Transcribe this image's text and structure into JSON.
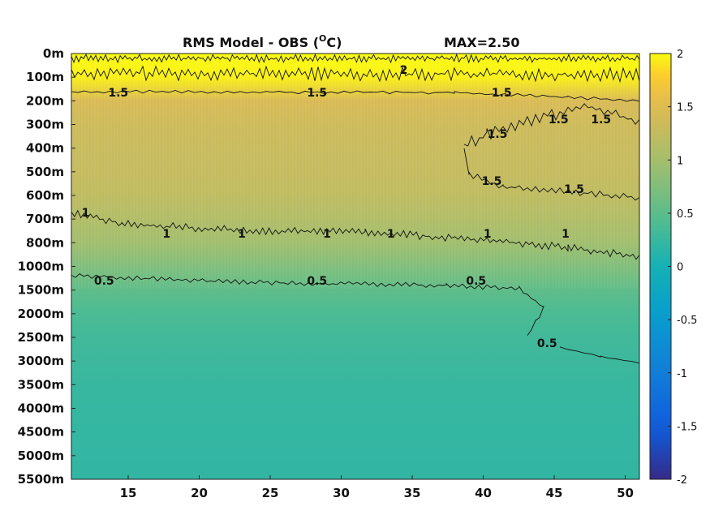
{
  "chart_data": {
    "type": "heatmap",
    "title": "RMS Model - OBS (",
    "title_sup": "O",
    "title_tail": "C)",
    "max_label": "MAX=2.50",
    "xlabel": "",
    "ylabel": "",
    "xlim": [
      11,
      51
    ],
    "x_ticks": [
      15,
      20,
      25,
      30,
      35,
      40,
      45,
      50
    ],
    "y_ticks": [
      "0m",
      "100m",
      "200m",
      "300m",
      "400m",
      "500m",
      "600m",
      "700m",
      "800m",
      "1000m",
      "1500m",
      "2000m",
      "2500m",
      "3000m",
      "3500m",
      "4000m",
      "4500m",
      "5000m",
      "5500m"
    ],
    "colorbar": {
      "colormap": "parula",
      "clim": [
        -2,
        2
      ],
      "ticks": [
        "2",
        "1.5",
        "1",
        "0.5",
        "0",
        "-0.5",
        "-1",
        "-1.5",
        "-2"
      ]
    },
    "depth_profile": [
      {
        "depth": "0m",
        "value": 2.0
      },
      {
        "depth": "100m",
        "value": 1.95
      },
      {
        "depth": "200m",
        "value": 1.45
      },
      {
        "depth": "300m",
        "value": 1.35
      },
      {
        "depth": "400m",
        "value": 1.3
      },
      {
        "depth": "500m",
        "value": 1.28
      },
      {
        "depth": "600m",
        "value": 1.22
      },
      {
        "depth": "700m",
        "value": 1.1
      },
      {
        "depth": "800m",
        "value": 0.97
      },
      {
        "depth": "1000m",
        "value": 0.75
      },
      {
        "depth": "1500m",
        "value": 0.52
      },
      {
        "depth": "2000m",
        "value": 0.38
      },
      {
        "depth": "2500m",
        "value": 0.32
      },
      {
        "depth": "3000m",
        "value": 0.28
      },
      {
        "depth": "3500m",
        "value": 0.25
      },
      {
        "depth": "4000m",
        "value": 0.23
      },
      {
        "depth": "4500m",
        "value": 0.22
      },
      {
        "depth": "5000m",
        "value": 0.21
      },
      {
        "depth": "5500m",
        "value": 0.2
      }
    ],
    "contour_levels": [
      "2",
      "1.5",
      "1",
      "0.5"
    ],
    "contour_labels": [
      {
        "text": "1.5",
        "x": 14.3,
        "depth": "200m"
      },
      {
        "text": "1.5",
        "x": 28.3,
        "depth": "200m"
      },
      {
        "text": "1.5",
        "x": 41.3,
        "depth": "200m"
      },
      {
        "text": "1.5",
        "x": 45.3,
        "depth": "300m"
      },
      {
        "text": "1.5",
        "x": 48.3,
        "depth": "300m"
      },
      {
        "text": "1.5",
        "x": 41.0,
        "depth": "400m"
      },
      {
        "text": "1.5",
        "x": 40.6,
        "depth": "500m"
      },
      {
        "text": "1.5",
        "x": 46.4,
        "depth": "600m"
      },
      {
        "text": "2",
        "x": 34.4,
        "depth": "100m"
      },
      {
        "text": "1",
        "x": 12.0,
        "depth": "700m"
      },
      {
        "text": "1",
        "x": 17.7,
        "depth": "800m"
      },
      {
        "text": "1",
        "x": 23.0,
        "depth": "800m"
      },
      {
        "text": "1",
        "x": 29.0,
        "depth": "800m"
      },
      {
        "text": "1",
        "x": 33.5,
        "depth": "800m"
      },
      {
        "text": "1",
        "x": 40.3,
        "depth": "800m"
      },
      {
        "text": "1",
        "x": 45.8,
        "depth": "800m"
      },
      {
        "text": "0.5",
        "x": 13.3,
        "depth": "1500m"
      },
      {
        "text": "0.5",
        "x": 28.3,
        "depth": "1500m"
      },
      {
        "text": "0.5",
        "x": 39.5,
        "depth": "1500m"
      },
      {
        "text": "0.5",
        "x": 44.5,
        "depth": "2500m"
      }
    ]
  }
}
